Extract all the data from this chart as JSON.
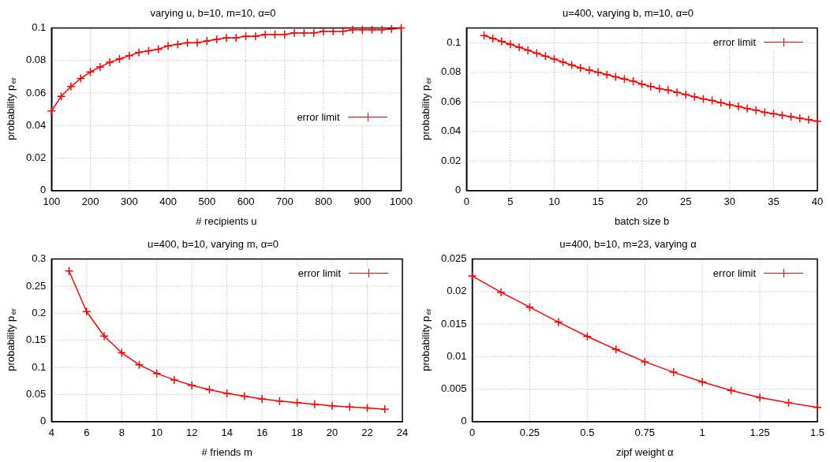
{
  "chart_data": [
    {
      "type": "line",
      "title": "varying u, b=10, m=10, α=0",
      "xlabel": "# recipients u",
      "ylabel": "probability p$_{er}$",
      "xlim": [
        100,
        1000
      ],
      "ylim": [
        0,
        0.1
      ],
      "xticks": [
        100,
        200,
        300,
        400,
        500,
        600,
        700,
        800,
        900,
        1000
      ],
      "yticks": [
        0,
        0.02,
        0.04,
        0.06,
        0.08,
        0.1
      ],
      "grid": true,
      "legend": "right",
      "marker": "cross",
      "line_style": "solid",
      "x": [
        100,
        125,
        150,
        175,
        200,
        225,
        250,
        275,
        300,
        325,
        350,
        375,
        400,
        425,
        450,
        475,
        500,
        525,
        550,
        575,
        600,
        625,
        650,
        675,
        700,
        725,
        750,
        775,
        800,
        825,
        850,
        875,
        900,
        925,
        950,
        975,
        1000
      ],
      "series": [
        {
          "name": "error limit",
          "color": "#ff0000",
          "values": [
            0.049,
            0.058,
            0.064,
            0.069,
            0.073,
            0.076,
            0.079,
            0.081,
            0.083,
            0.085,
            0.086,
            0.087,
            0.089,
            0.09,
            0.091,
            0.091,
            0.092,
            0.093,
            0.094,
            0.094,
            0.095,
            0.095,
            0.096,
            0.096,
            0.096,
            0.097,
            0.097,
            0.097,
            0.098,
            0.098,
            0.098,
            0.099,
            0.099,
            0.099,
            0.099,
            0.0995,
            0.1
          ]
        }
      ]
    },
    {
      "type": "line",
      "title": "u=400, varying b, m=10, α=0",
      "xlabel": "batch size b",
      "ylabel": "probability p$_{er}$",
      "xlim": [
        0,
        40
      ],
      "ylim": [
        0,
        0.11
      ],
      "xticks": [
        0,
        5,
        10,
        15,
        20,
        25,
        30,
        35,
        40
      ],
      "yticks": [
        0,
        0.02,
        0.04,
        0.06,
        0.08,
        0.1
      ],
      "grid": true,
      "legend": "top right",
      "marker": "cross",
      "line_style": "solid",
      "x": [
        2,
        3,
        4,
        5,
        6,
        7,
        8,
        9,
        10,
        11,
        12,
        13,
        14,
        15,
        16,
        17,
        18,
        19,
        20,
        21,
        22,
        23,
        24,
        25,
        26,
        27,
        28,
        29,
        30,
        31,
        32,
        33,
        34,
        35,
        36,
        37,
        38,
        39,
        40
      ],
      "series": [
        {
          "name": "error limit",
          "color": "#ff0000",
          "values": [
            0.105,
            0.103,
            0.101,
            0.099,
            0.097,
            0.095,
            0.093,
            0.091,
            0.089,
            0.087,
            0.085,
            0.083,
            0.0815,
            0.08,
            0.0785,
            0.077,
            0.0755,
            0.074,
            0.072,
            0.0705,
            0.069,
            0.068,
            0.0665,
            0.065,
            0.0635,
            0.062,
            0.061,
            0.0595,
            0.058,
            0.057,
            0.0555,
            0.0545,
            0.053,
            0.052,
            0.051,
            0.05,
            0.049,
            0.048,
            0.047
          ]
        }
      ]
    },
    {
      "type": "line",
      "title": "u=400, b=10, varying m, α=0",
      "xlabel": "# friends m",
      "ylabel": "probability p$_{er}$",
      "xlim": [
        4,
        24
      ],
      "ylim": [
        0,
        0.3
      ],
      "xticks": [
        4,
        6,
        8,
        10,
        12,
        14,
        16,
        18,
        20,
        22,
        24
      ],
      "yticks": [
        0,
        0.05,
        0.1,
        0.15,
        0.2,
        0.25,
        0.3
      ],
      "grid": true,
      "legend": "top right",
      "marker": "cross",
      "line_style": "solid",
      "x": [
        5,
        6,
        7,
        8,
        9,
        10,
        11,
        12,
        13,
        14,
        15,
        16,
        17,
        18,
        19,
        20,
        21,
        22,
        23
      ],
      "series": [
        {
          "name": "error limit",
          "color": "#ff0000",
          "values": [
            0.278,
            0.203,
            0.158,
            0.127,
            0.105,
            0.089,
            0.077,
            0.067,
            0.059,
            0.052,
            0.047,
            0.042,
            0.038,
            0.035,
            0.032,
            0.029,
            0.027,
            0.025,
            0.023
          ]
        }
      ]
    },
    {
      "type": "line",
      "title": "u=400, b=10, m=23, varying α",
      "xlabel": "zipf weight α",
      "ylabel": "probability p$_{er}$",
      "xlim": [
        0,
        1.5
      ],
      "ylim": [
        0,
        0.025
      ],
      "xticks": [
        0,
        0.25,
        0.5,
        0.75,
        1,
        1.25,
        1.5
      ],
      "yticks": [
        0,
        0.005,
        0.01,
        0.015,
        0.02,
        0.025
      ],
      "grid": true,
      "legend": "top right",
      "marker": "cross",
      "line_style": "solid",
      "x": [
        0,
        0.125,
        0.25,
        0.375,
        0.5,
        0.625,
        0.75,
        0.875,
        1,
        1.125,
        1.25,
        1.375,
        1.5
      ],
      "series": [
        {
          "name": "error limit",
          "color": "#ff0000",
          "values": [
            0.0224,
            0.0199,
            0.0176,
            0.0153,
            0.0131,
            0.0111,
            0.0092,
            0.0076,
            0.0061,
            0.0048,
            0.0037,
            0.0029,
            0.0022
          ]
        }
      ]
    }
  ]
}
